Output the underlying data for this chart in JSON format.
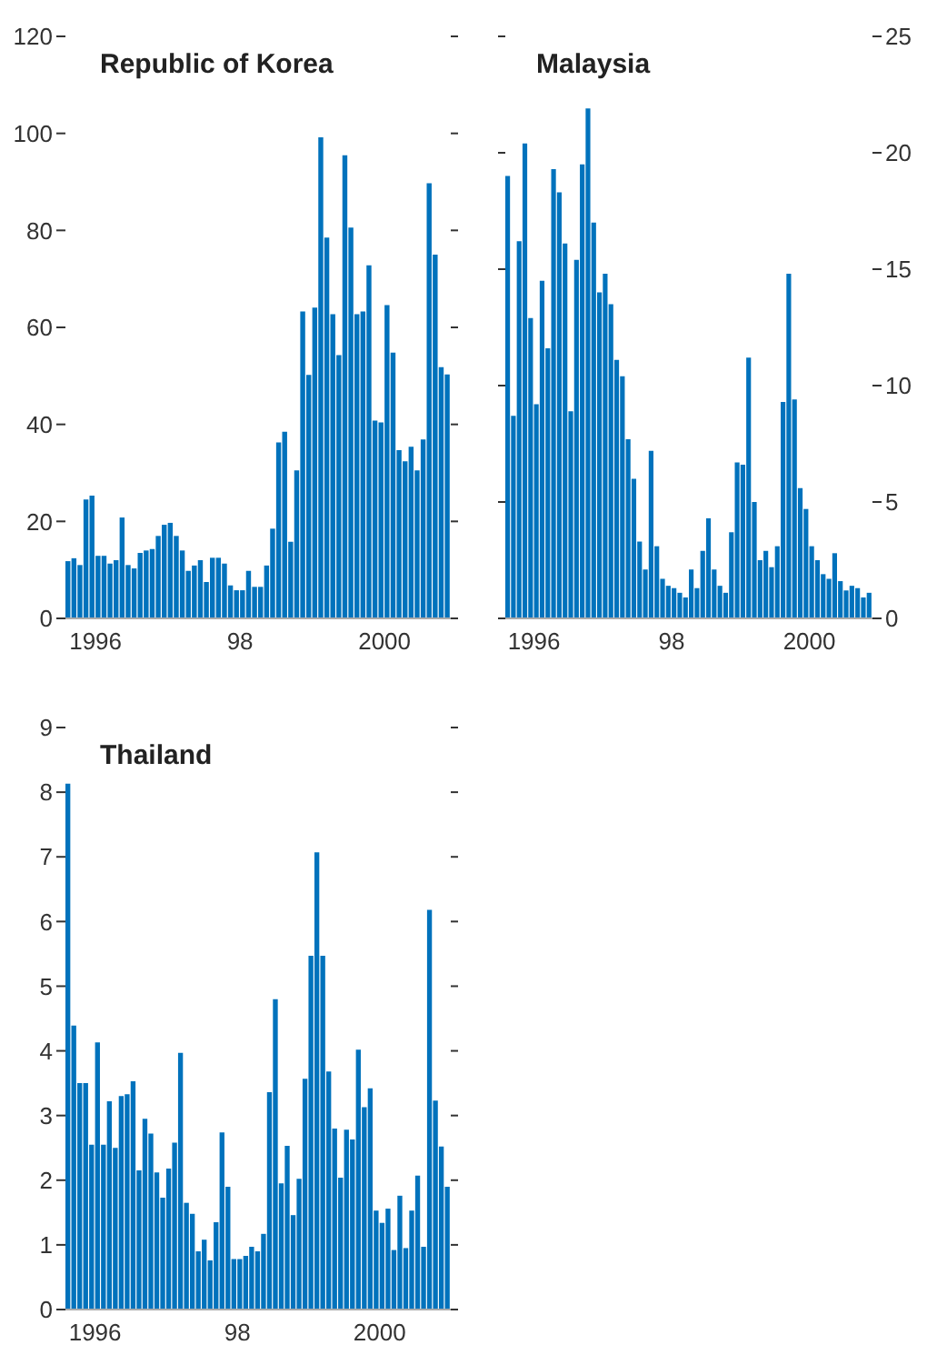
{
  "chart_data": [
    {
      "type": "bar",
      "title": "Republic of Korea",
      "x": [
        "1995-08",
        "1995-09",
        "1995-10",
        "1995-11",
        "1995-12",
        "1996-01",
        "1996-02",
        "1996-03",
        "1996-04",
        "1996-05",
        "1996-06",
        "1996-07",
        "1996-08",
        "1996-09",
        "1996-10",
        "1996-11",
        "1996-12",
        "1997-01",
        "1997-02",
        "1997-03",
        "1997-04",
        "1997-05",
        "1997-06",
        "1997-07",
        "1997-08",
        "1997-09",
        "1997-10",
        "1997-11",
        "1997-12",
        "1998-01",
        "1998-02",
        "1998-03",
        "1998-04",
        "1998-05",
        "1998-06",
        "1998-07",
        "1998-08",
        "1998-09",
        "1998-10",
        "1998-11",
        "1998-12",
        "1999-01",
        "1999-02",
        "1999-03",
        "1999-04",
        "1999-05",
        "1999-06",
        "1999-07",
        "1999-08",
        "1999-09",
        "1999-10",
        "1999-11",
        "1999-12",
        "2000-01",
        "2000-02",
        "2000-03",
        "2000-04",
        "2000-05",
        "2000-06",
        "2000-07",
        "2000-08",
        "2000-09",
        "2000-10",
        "2000-11"
      ],
      "series": [
        {
          "color": "#0072bc",
          "values": [
            11.8,
            12.4,
            11,
            24.5,
            25.3,
            12.9,
            12.9,
            11.3,
            12,
            20.8,
            11,
            10.3,
            13.5,
            14,
            14.3,
            17,
            19.3,
            19.7,
            17,
            14,
            9.8,
            10.9,
            12,
            7.5,
            12.5,
            12.5,
            11.3,
            6.8,
            5.8,
            5.8,
            9.8,
            6.5,
            6.5,
            10.9,
            18.5,
            36.3,
            38.5,
            15.8,
            30.5,
            63.3,
            50.2,
            64.1,
            99.2,
            78.5,
            62.7,
            54.3,
            95.5,
            80.6,
            62.7,
            63.3,
            72.8,
            40.8,
            40.4,
            64.6,
            54.8,
            34.7,
            32.4,
            35.4,
            30.5,
            36.9,
            89.7,
            75,
            51.8,
            50.3
          ]
        }
      ],
      "xlim": [
        "1995-08",
        "2000-12"
      ],
      "xticks": [
        {
          "value": "1996",
          "label": "1996"
        },
        {
          "value": "1998",
          "label": "98"
        },
        {
          "value": "2000",
          "label": "2000"
        }
      ],
      "ylim": [
        0,
        120
      ],
      "yticks": [
        0,
        20,
        40,
        60,
        80,
        100,
        120
      ]
    },
    {
      "type": "bar",
      "title": "Malaysia",
      "x": [
        "1995-08",
        "1995-09",
        "1995-10",
        "1995-11",
        "1995-12",
        "1996-01",
        "1996-02",
        "1996-03",
        "1996-04",
        "1996-05",
        "1996-06",
        "1996-07",
        "1996-08",
        "1996-09",
        "1996-10",
        "1996-11",
        "1996-12",
        "1997-01",
        "1997-02",
        "1997-03",
        "1997-04",
        "1997-05",
        "1997-06",
        "1997-07",
        "1997-08",
        "1997-09",
        "1997-10",
        "1997-11",
        "1997-12",
        "1998-01",
        "1998-02",
        "1998-03",
        "1998-04",
        "1998-05",
        "1998-06",
        "1998-07",
        "1998-08",
        "1998-09",
        "1998-10",
        "1998-11",
        "1998-12",
        "1999-01",
        "1999-02",
        "1999-03",
        "1999-04",
        "1999-05",
        "1999-06",
        "1999-07",
        "1999-08",
        "1999-09",
        "1999-10",
        "1999-11",
        "1999-12",
        "2000-01",
        "2000-02",
        "2000-03",
        "2000-04",
        "2000-05",
        "2000-06",
        "2000-07",
        "2000-08",
        "2000-09",
        "2000-10",
        "2000-11"
      ],
      "series": [
        {
          "color": "#0072bc",
          "axis": "y2",
          "values": [
            19,
            8.7,
            16.2,
            20.4,
            12.9,
            9.2,
            14.5,
            11.6,
            19.3,
            18.3,
            16.1,
            8.9,
            15.4,
            19.5,
            21.9,
            17,
            14,
            14.8,
            13.5,
            11.1,
            10.4,
            7.7,
            6,
            3.3,
            2.1,
            7.2,
            3.1,
            1.7,
            1.4,
            1.3,
            1.1,
            0.9,
            2.1,
            1.3,
            2.9,
            4.3,
            2.1,
            1.4,
            1.1,
            3.7,
            6.7,
            6.6,
            11.2,
            5,
            2.5,
            2.9,
            2.2,
            3.1,
            9.3,
            14.8,
            9.4,
            5.6,
            4.7,
            3.1,
            2.5,
            1.9,
            1.7,
            2.8,
            1.6,
            1.2,
            1.4,
            1.3,
            0.9,
            1.1
          ]
        }
      ],
      "xlim": [
        "1995-08",
        "2000-12"
      ],
      "xticks": [
        {
          "value": "1996",
          "label": "1996"
        },
        {
          "value": "1998",
          "label": "98"
        },
        {
          "value": "2000",
          "label": "2000"
        }
      ],
      "y2lim": [
        0,
        25
      ],
      "y2ticks": [
        0,
        5,
        10,
        15,
        20,
        25
      ]
    },
    {
      "type": "bar",
      "title": "Thailand",
      "x": [
        "1995-08",
        "1995-09",
        "1995-10",
        "1995-11",
        "1995-12",
        "1996-01",
        "1996-02",
        "1996-03",
        "1996-04",
        "1996-05",
        "1996-06",
        "1996-07",
        "1996-08",
        "1996-09",
        "1996-10",
        "1996-11",
        "1996-12",
        "1997-01",
        "1997-02",
        "1997-03",
        "1997-04",
        "1997-05",
        "1997-06",
        "1997-07",
        "1997-08",
        "1997-09",
        "1997-10",
        "1997-11",
        "1997-12",
        "1998-01",
        "1998-02",
        "1998-03",
        "1998-04",
        "1998-05",
        "1998-06",
        "1998-07",
        "1998-08",
        "1998-09",
        "1998-10",
        "1998-11",
        "1998-12",
        "1999-01",
        "1999-02",
        "1999-03",
        "1999-04",
        "1999-05",
        "1999-06",
        "1999-07",
        "1999-08",
        "1999-09",
        "1999-10",
        "1999-11",
        "1999-12",
        "2000-01",
        "2000-02",
        "2000-03",
        "2000-04",
        "2000-05",
        "2000-06",
        "2000-07",
        "2000-08",
        "2000-09",
        "2000-10",
        "2000-11",
        "2000-12"
      ],
      "series": [
        {
          "color": "#0072bc",
          "values": [
            8.13,
            4.39,
            3.5,
            3.5,
            2.55,
            4.13,
            2.55,
            3.22,
            2.5,
            3.3,
            3.33,
            3.53,
            2.15,
            2.95,
            2.72,
            2.12,
            1.73,
            2.18,
            2.58,
            3.97,
            1.65,
            1.48,
            0.9,
            1.08,
            0.76,
            1.35,
            2.74,
            1.9,
            0.78,
            0.78,
            0.83,
            0.97,
            0.9,
            1.17,
            3.36,
            4.8,
            1.95,
            2.53,
            1.46,
            2.02,
            3.57,
            5.47,
            7.07,
            5.47,
            3.68,
            2.8,
            2.04,
            2.78,
            2.63,
            4.02,
            3.13,
            3.42,
            1.53,
            1.34,
            1.56,
            0.92,
            1.76,
            0.95,
            1.53,
            2.07,
            0.97,
            6.18,
            3.23,
            2.52,
            1.9
          ]
        }
      ],
      "xlim": [
        "1995-08",
        "2001-01"
      ],
      "xticks": [
        {
          "value": "1996",
          "label": "1996"
        },
        {
          "value": "1998",
          "label": "98"
        },
        {
          "value": "2000",
          "label": "2000"
        }
      ],
      "ylim": [
        0,
        9
      ],
      "yticks": [
        0,
        1,
        2,
        3,
        4,
        5,
        6,
        7,
        8,
        9
      ]
    }
  ]
}
